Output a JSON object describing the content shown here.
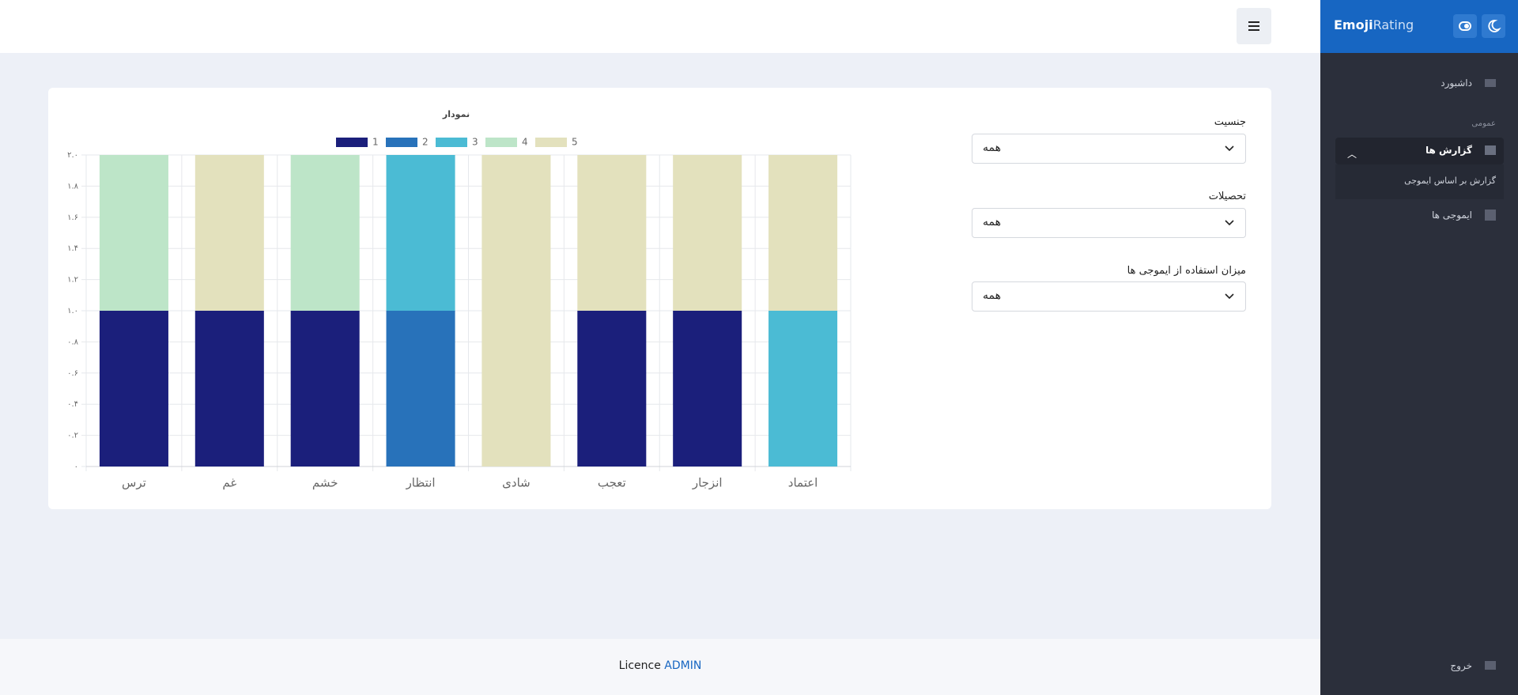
{
  "sidebar": {
    "brand_bold": "Emoji",
    "brand_light": "Rating",
    "dashboard": "داشبورد",
    "section": "عمومی",
    "reports": "گزارش ها",
    "reports_sub": "گزارش بر اساس ایموجی",
    "emojis": "ایموجی ها",
    "logout": "خروج"
  },
  "filters": [
    {
      "label": "جنسیت",
      "value": "همه"
    },
    {
      "label": "تحصیلات",
      "value": "همه"
    },
    {
      "label": "میزان استفاده از ایموجی ها",
      "value": "همه"
    }
  ],
  "footer": {
    "text": "Licence",
    "link": "ADMIN"
  },
  "chart_data": {
    "type": "stacked_bar",
    "title": "نمودار",
    "categories": [
      "ترس",
      "غم",
      "خشم",
      "انتظار",
      "شادی",
      "تعجب",
      "انزجار",
      "اعتماد"
    ],
    "series": [
      {
        "name": "1",
        "color": "#1b1f7b",
        "values": [
          1,
          1,
          1,
          0,
          0,
          1,
          1,
          0
        ]
      },
      {
        "name": "2",
        "color": "#2872ba",
        "values": [
          0,
          0,
          0,
          1,
          0,
          0,
          0,
          0
        ]
      },
      {
        "name": "3",
        "color": "#4bbbd4",
        "values": [
          0,
          0,
          0,
          1,
          0,
          0,
          0,
          1
        ]
      },
      {
        "name": "4",
        "color": "#bde5c8",
        "values": [
          1,
          0,
          1,
          0,
          0,
          0,
          0,
          0
        ]
      },
      {
        "name": "5",
        "color": "#e3e1bd",
        "values": [
          0,
          1,
          0,
          0,
          2,
          1,
          1,
          1
        ]
      }
    ],
    "ylim": [
      0,
      2
    ],
    "yticks": [
      {
        "value": 0,
        "label": "۰"
      },
      {
        "value": 0.2,
        "label": "۰.۲"
      },
      {
        "value": 0.4,
        "label": "۰.۴"
      },
      {
        "value": 0.6,
        "label": "۰.۶"
      },
      {
        "value": 0.8,
        "label": "۰.۸"
      },
      {
        "value": 1,
        "label": "۱.۰"
      },
      {
        "value": 1.2,
        "label": "۱.۲"
      },
      {
        "value": 1.4,
        "label": "۱.۴"
      },
      {
        "value": 1.6,
        "label": "۱.۶"
      },
      {
        "value": 1.8,
        "label": "۱.۸"
      },
      {
        "value": 2,
        "label": "۲.۰"
      }
    ],
    "grid": true
  }
}
